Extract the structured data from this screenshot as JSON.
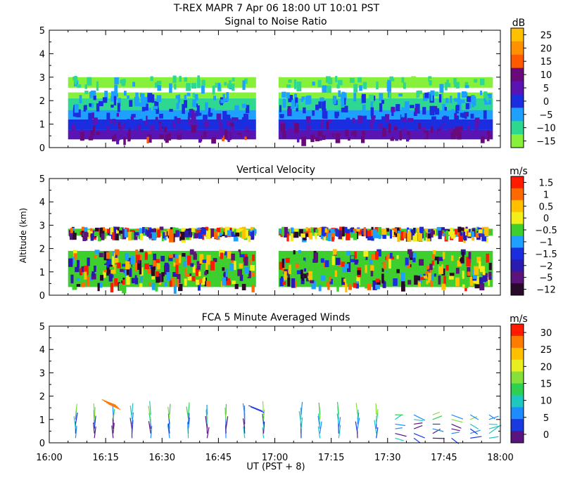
{
  "header": {
    "title_line": "T-REX  MAPR  7 Apr 06  18:00 UT  10:01  PST"
  },
  "x_axis": {
    "label": "UT  (PST + 8)",
    "ticks": [
      "16:00",
      "16:15",
      "16:30",
      "16:45",
      "17:00",
      "17:15",
      "17:30",
      "17:45",
      "18:00"
    ],
    "range_minutes": [
      0,
      120
    ]
  },
  "chart_data": [
    {
      "type": "heatmap",
      "title": "Signal to Noise Ratio",
      "ylabel": "",
      "ylim": [
        0,
        5
      ],
      "y_ticks": [
        "0",
        "1",
        "2",
        "3",
        "4",
        "5"
      ],
      "colorbar": {
        "unit": "dB",
        "labels": [
          "25",
          "20",
          "15",
          "10",
          "5",
          "0",
          "−5",
          "−10",
          "−15"
        ],
        "colors": [
          "#ffc000",
          "#ff9000",
          "#ff5a00",
          "#6a0a7a",
          "#5a14b4",
          "#1a2ee0",
          "#1ea0ff",
          "#2ed890",
          "#86f03a"
        ]
      },
      "data_gap_minutes": [
        55,
        61
      ],
      "layers": [
        {
          "from_km": 0.35,
          "to_km": 0.75,
          "color": "#5a14b4"
        },
        {
          "from_km": 0.75,
          "to_km": 1.2,
          "color": "#1a2ee0"
        },
        {
          "from_km": 1.2,
          "to_km": 1.6,
          "color": "#1ea0ff"
        },
        {
          "from_km": 1.6,
          "to_km": 2.1,
          "color": "#2ed890"
        },
        {
          "from_km": 2.1,
          "to_km": 2.35,
          "color": "#86f03a"
        },
        {
          "from_km": 2.55,
          "to_km": 3.0,
          "color": "#86f03a"
        }
      ]
    },
    {
      "type": "heatmap",
      "title": "Vertical Velocity",
      "ylabel": "Altitude (km)",
      "ylim": [
        0,
        5
      ],
      "y_ticks": [
        "0",
        "1",
        "2",
        "3",
        "4",
        "5"
      ],
      "colorbar": {
        "unit": "m/s",
        "labels": [
          "1.5",
          "1",
          "0.5",
          "0",
          "−0.5",
          "−1",
          "−1.5",
          "−2",
          "−5",
          "−12"
        ],
        "colors": [
          "#ff1a00",
          "#ff6a00",
          "#ffc000",
          "#f2ee1a",
          "#3ecf2e",
          "#1ea0ff",
          "#1a2ee0",
          "#2a1ab0",
          "#5a147a",
          "#2a0a2a"
        ]
      },
      "data_gap_minutes": [
        55,
        61
      ],
      "layers": [
        {
          "from_km": 0.35,
          "to_km": 1.9,
          "color": "#3ecf2e"
        },
        {
          "from_km": 2.55,
          "to_km": 2.85,
          "color": "#3ecf2e"
        }
      ]
    },
    {
      "type": "scatter",
      "title": "FCA 5 Minute Averaged Winds",
      "ylabel": "",
      "ylim": [
        0,
        5
      ],
      "y_ticks": [
        "0",
        "1",
        "2",
        "3",
        "4",
        "5"
      ],
      "colorbar": {
        "unit": "m/s",
        "labels": [
          "30",
          "25",
          "20",
          "15",
          "10",
          "5",
          "0"
        ],
        "colors": [
          "#ff1a00",
          "#ff7a00",
          "#ffc000",
          "#e8ee20",
          "#86e03a",
          "#2ed050",
          "#1ec8c0",
          "#1e8cff",
          "#1a3ae0",
          "#5a1480"
        ]
      },
      "profiles_minutes": [
        7,
        12,
        17,
        22,
        27,
        32,
        37,
        42,
        47,
        52,
        57,
        67,
        72,
        77,
        82,
        87,
        92,
        97,
        102,
        107,
        112,
        117
      ],
      "barb_levels_km": [
        0.2,
        0.4,
        0.6,
        0.8,
        1.0,
        1.2
      ],
      "isolated_barbs": [
        {
          "minute": 53,
          "altitude_km": 1.6
        },
        {
          "minute": 14,
          "altitude_km": 1.85
        }
      ]
    }
  ]
}
